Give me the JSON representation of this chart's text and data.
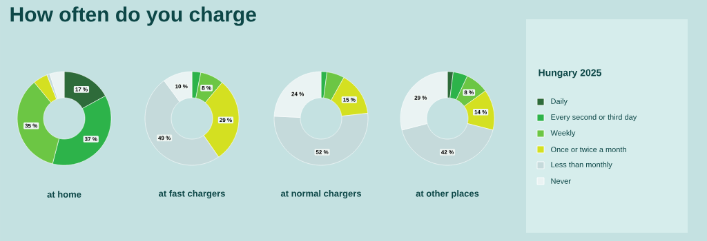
{
  "chart_data": [
    {
      "type": "donut",
      "title": "at home",
      "annotations": [
        "How often do you charge"
      ],
      "categories": [
        null,
        null,
        null,
        null,
        null,
        null
      ],
      "values": [
        17,
        37,
        35,
        5,
        1,
        5
      ],
      "colors": [
        "#2e6b3a",
        "#2db34a",
        "#6cc644",
        "#d4e021",
        "#c5dadb",
        "#eaf3f3"
      ],
      "value_labels": [
        "17 %",
        "37 %",
        "35 %",
        null,
        null,
        null
      ]
    },
    {
      "type": "donut",
      "title": "at fast chargers",
      "categories": [
        null,
        null,
        null,
        null,
        null,
        null
      ],
      "values": [
        0,
        3,
        8,
        29,
        49,
        10
      ],
      "colors": [
        "#2e6b3a",
        "#2db34a",
        "#6cc644",
        "#d4e021",
        "#c5dadb",
        "#eaf3f3"
      ],
      "value_labels": [
        null,
        null,
        "8 %",
        "29 %",
        "49 %",
        "10 %"
      ]
    },
    {
      "type": "donut",
      "title": "at normal chargers",
      "categories": [
        null,
        null,
        null,
        null,
        null,
        null
      ],
      "values": [
        0,
        2,
        6,
        15,
        52,
        24
      ],
      "colors": [
        "#2e6b3a",
        "#2db34a",
        "#6cc644",
        "#d4e021",
        "#c5dadb",
        "#eaf3f3"
      ],
      "value_labels": [
        null,
        null,
        null,
        "15 %",
        "52 %",
        "24 %"
      ]
    },
    {
      "type": "donut",
      "title": "at other places",
      "legend": "right",
      "legend_title": "Hungary 2025",
      "categories": [
        "Daily",
        "Every second or third day",
        "Weekly",
        "Once or twice a month",
        "Less than monthly",
        "Never"
      ],
      "values": [
        2,
        5,
        8,
        14,
        42,
        29
      ],
      "colors": [
        "#2e6b3a",
        "#2db34a",
        "#6cc644",
        "#d4e021",
        "#c5dadb",
        "#eaf3f3"
      ],
      "value_labels": [
        null,
        null,
        "8 %",
        "14 %",
        "42 %",
        "29 %"
      ]
    }
  ]
}
